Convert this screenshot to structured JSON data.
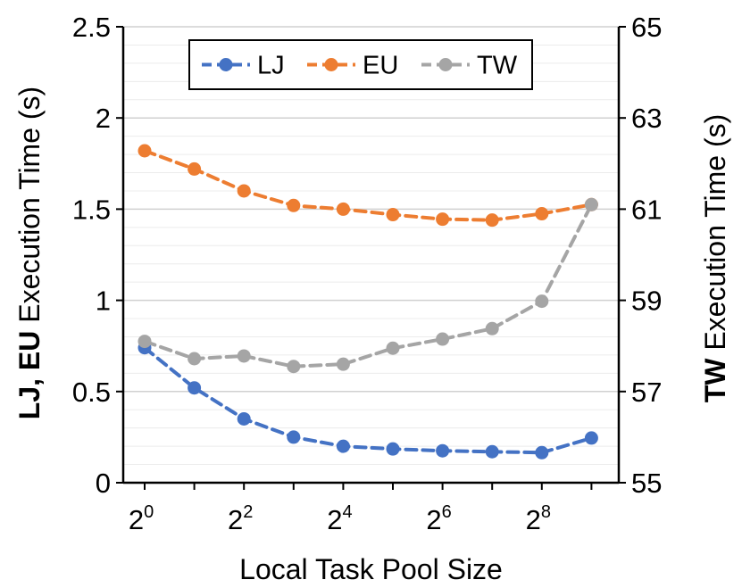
{
  "chart_data": {
    "type": "line",
    "xlabel": "Local Task Pool Size",
    "ylabel_left": {
      "bold": "LJ, EU",
      "normal": " Execution Time (s)"
    },
    "ylabel_right": {
      "bold": "TW",
      "normal": " Execution Time (s)"
    },
    "x": [
      0,
      1,
      2,
      3,
      4,
      5,
      6,
      7,
      8,
      9
    ],
    "x_ticks": [
      {
        "x": 0,
        "base": "2",
        "exp": "0"
      },
      {
        "x": 2,
        "base": "2",
        "exp": "2"
      },
      {
        "x": 4,
        "base": "2",
        "exp": "4"
      },
      {
        "x": 6,
        "base": "2",
        "exp": "6"
      },
      {
        "x": 8,
        "base": "2",
        "exp": "8"
      }
    ],
    "ylim_left": [
      0,
      2.5
    ],
    "ylim_right": [
      55,
      65
    ],
    "y_ticks_left": [
      "0",
      "0.5",
      "1",
      "1.5",
      "2",
      "2.5"
    ],
    "y_ticks_right": [
      "55",
      "57",
      "59",
      "61",
      "63",
      "65"
    ],
    "grid": true,
    "legend_position": "top-center",
    "series": [
      {
        "name": "LJ",
        "axis": "left",
        "color": "#4472C4",
        "values": [
          0.74,
          0.52,
          0.35,
          0.25,
          0.2,
          0.185,
          0.175,
          0.17,
          0.165,
          0.245
        ]
      },
      {
        "name": "EU",
        "axis": "left",
        "color": "#ED7D31",
        "values": [
          1.82,
          1.72,
          1.6,
          1.52,
          1.5,
          1.47,
          1.445,
          1.44,
          1.475,
          1.525
        ]
      },
      {
        "name": "TW",
        "axis": "right",
        "color": "#A5A5A5",
        "values": [
          58.1,
          57.72,
          57.78,
          57.55,
          57.6,
          57.95,
          58.15,
          58.38,
          58.98,
          61.1
        ]
      }
    ]
  }
}
